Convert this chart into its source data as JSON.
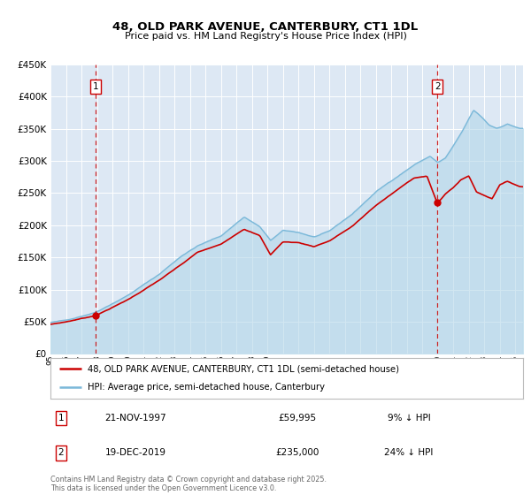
{
  "title_line1": "48, OLD PARK AVENUE, CANTERBURY, CT1 1DL",
  "title_line2": "Price paid vs. HM Land Registry's House Price Index (HPI)",
  "legend_line1": "48, OLD PARK AVENUE, CANTERBURY, CT1 1DL (semi-detached house)",
  "legend_line2": "HPI: Average price, semi-detached house, Canterbury",
  "annotation1_date": "21-NOV-1997",
  "annotation1_price": "£59,995",
  "annotation1_hpi": "9% ↓ HPI",
  "annotation1_year": 1997.9,
  "annotation1_value": 59995,
  "annotation2_date": "19-DEC-2019",
  "annotation2_price": "£235,000",
  "annotation2_hpi": "24% ↓ HPI",
  "annotation2_year": 2019.97,
  "annotation2_value": 235000,
  "hpi_color": "#7ab8d9",
  "hpi_fill_color": "#aed4e8",
  "price_color": "#cc0000",
  "plot_bg": "#dde8f4",
  "grid_color": "#ffffff",
  "ylim_min": 0,
  "ylim_max": 450000,
  "ytick_step": 50000,
  "xlim_min": 1995.0,
  "xlim_max": 2025.5,
  "footer": "Contains HM Land Registry data © Crown copyright and database right 2025.\nThis data is licensed under the Open Government Licence v3.0."
}
